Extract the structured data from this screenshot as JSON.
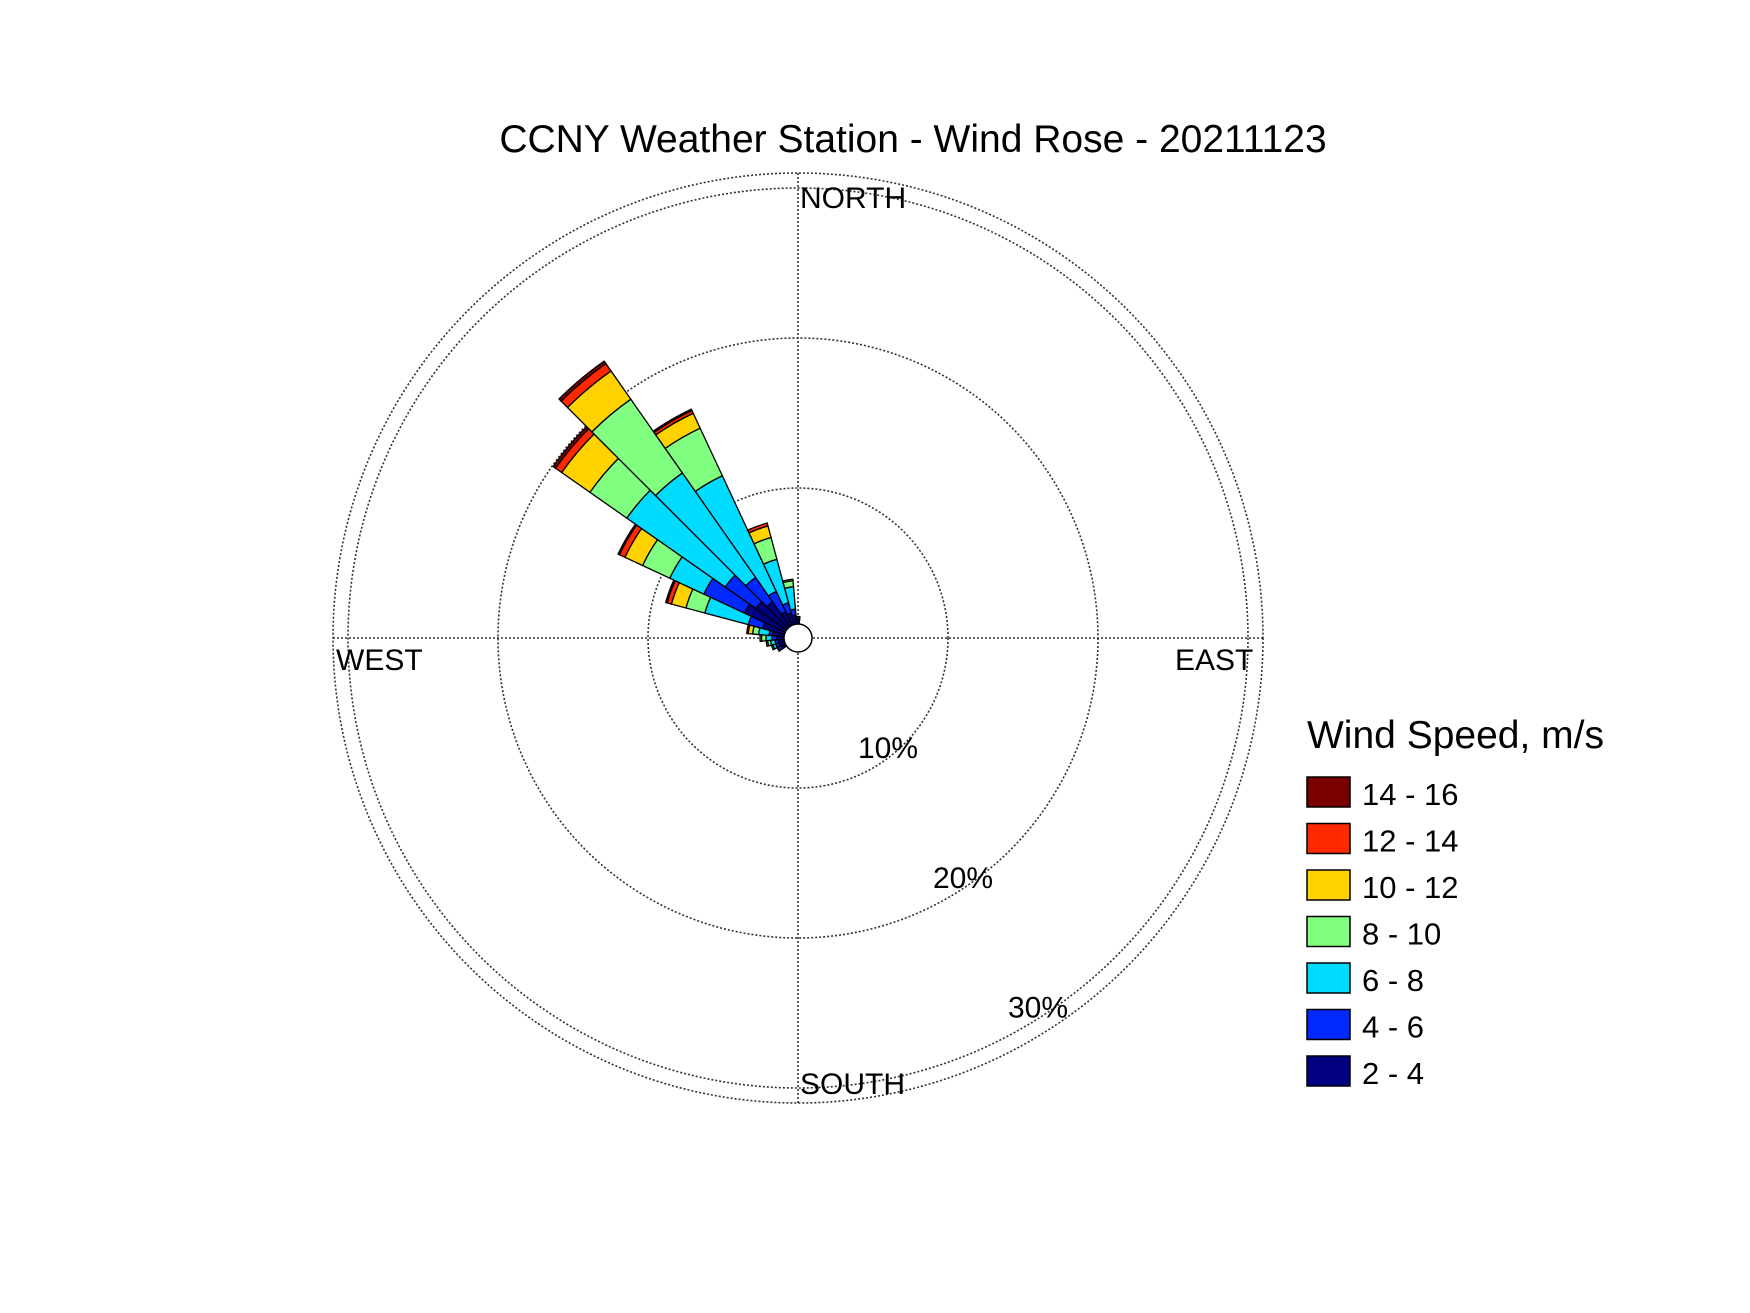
{
  "chart_data": {
    "type": "wind-rose",
    "title": "CCNY Weather Station - Wind Rose - 20211123",
    "direction_labels": {
      "north": "NORTH",
      "east": "EAST",
      "south": "SOUTH",
      "west": "WEST"
    },
    "ring_labels": [
      "10%",
      "20%",
      "30%"
    ],
    "rings_percent": [
      10,
      20,
      30
    ],
    "legend": {
      "title": "Wind Speed, m/s",
      "bins": [
        {
          "label": "14 - 16",
          "color": "#7a0000"
        },
        {
          "label": "12 - 14",
          "color": "#ff2800"
        },
        {
          "label": "10 - 12",
          "color": "#ffd200"
        },
        {
          "label": "8 - 10",
          "color": "#80ff80"
        },
        {
          "label": "6 - 8",
          "color": "#00dcff"
        },
        {
          "label": "4 - 6",
          "color": "#0028ff"
        },
        {
          "label": "2 - 4",
          "color": "#000080"
        }
      ]
    },
    "sector_width_deg": 10,
    "speed_bins_order": [
      "2 - 4",
      "4 - 6",
      "6 - 8",
      "8 - 10",
      "10 - 12",
      "12 - 14",
      "14 - 16"
    ],
    "sectors": [
      {
        "direction_deg": 280,
        "cumulative_percent": [
          0.8,
          1.0,
          1.7,
          2.1,
          2.4,
          2.5,
          2.5
        ]
      },
      {
        "direction_deg": 290,
        "cumulative_percent": [
          1.5,
          2.5,
          5.5,
          6.8,
          7.8,
          8.1,
          8.2
        ]
      },
      {
        "direction_deg": 300,
        "cumulative_percent": [
          3.0,
          6.0,
          8.5,
          10.5,
          11.8,
          12.2,
          12.3
        ]
      },
      {
        "direction_deg": 310,
        "cumulative_percent": [
          2.5,
          5.0,
          13.0,
          16.0,
          18.3,
          18.8,
          19.0
        ]
      },
      {
        "direction_deg": 320,
        "cumulative_percent": [
          2.0,
          4.0,
          12.5,
          18.5,
          20.8,
          21.4,
          21.6
        ]
      },
      {
        "direction_deg": 330,
        "cumulative_percent": [
          1.0,
          2.5,
          11.0,
          14.5,
          15.6,
          15.8,
          15.9
        ]
      },
      {
        "direction_deg": 340,
        "cumulative_percent": [
          0.8,
          1.5,
          4.5,
          6.0,
          6.8,
          7.0,
          7.0
        ]
      },
      {
        "direction_deg": 350,
        "cumulative_percent": [
          0.6,
          1.0,
          2.5,
          2.9,
          3.0,
          3.0,
          3.0
        ]
      },
      {
        "direction_deg": 270,
        "cumulative_percent": [
          0.5,
          0.8,
          1.2,
          1.5,
          1.6,
          1.6,
          1.6
        ]
      },
      {
        "direction_deg": 260,
        "cumulative_percent": [
          0.4,
          0.6,
          0.9,
          1.1,
          1.2,
          1.2,
          1.2
        ]
      },
      {
        "direction_deg": 250,
        "cumulative_percent": [
          0.4,
          0.6,
          0.8,
          0.9,
          0.9,
          0.9,
          0.9
        ]
      },
      {
        "direction_deg": 240,
        "cumulative_percent": [
          0.3,
          0.5,
          0.6,
          0.6,
          0.6,
          0.6,
          0.6
        ]
      },
      {
        "direction_deg": 0,
        "cumulative_percent": [
          0.3,
          0.4,
          0.5,
          0.5,
          0.5,
          0.5,
          0.5
        ]
      }
    ]
  }
}
